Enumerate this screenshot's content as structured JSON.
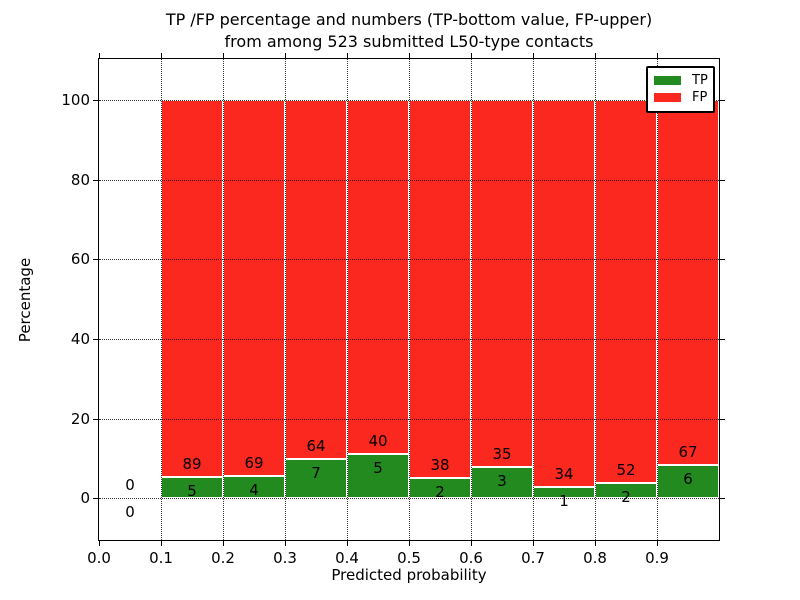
{
  "chart_data": {
    "type": "bar",
    "stacked": true,
    "normalized": "each bin scaled to 100 percent; labels show raw counts",
    "title": "TP /FP percentage and numbers (TP-bottom value, FP-upper) from among 523 submitted L50-type contacts",
    "title_line1": "TP /FP percentage and numbers (TP-bottom value, FP-upper)",
    "title_line2": "from among 523 submitted L50-type contacts",
    "xlabel": "Predicted probability",
    "ylabel": "Percentage",
    "total_contacts": 523,
    "bin_width": 0.1,
    "bin_starts": [
      0.0,
      0.1,
      0.2,
      0.3,
      0.4,
      0.5,
      0.6,
      0.7,
      0.8,
      0.9
    ],
    "series": [
      {
        "name": "TP",
        "color": "#228a1e",
        "values": [
          0,
          5,
          4,
          7,
          5,
          2,
          3,
          1,
          2,
          6
        ]
      },
      {
        "name": "FP",
        "color": "#fa281e",
        "values": [
          0,
          89,
          69,
          64,
          40,
          38,
          35,
          34,
          52,
          67
        ]
      }
    ],
    "xticks": [
      "0.0",
      "0.1",
      "0.2",
      "0.3",
      "0.4",
      "0.5",
      "0.6",
      "0.7",
      "0.8",
      "0.9"
    ],
    "yticks": [
      0,
      20,
      40,
      60,
      80,
      100
    ],
    "xlim": [
      0.0,
      1.0
    ],
    "ylim": [
      -10.5,
      110.3
    ],
    "grid": "dotted black, drawn above bars",
    "legend": {
      "position": "upper right",
      "entries": [
        "TP",
        "FP"
      ]
    },
    "bar_edge_color": "#ffffff",
    "text_color": "#000000"
  }
}
